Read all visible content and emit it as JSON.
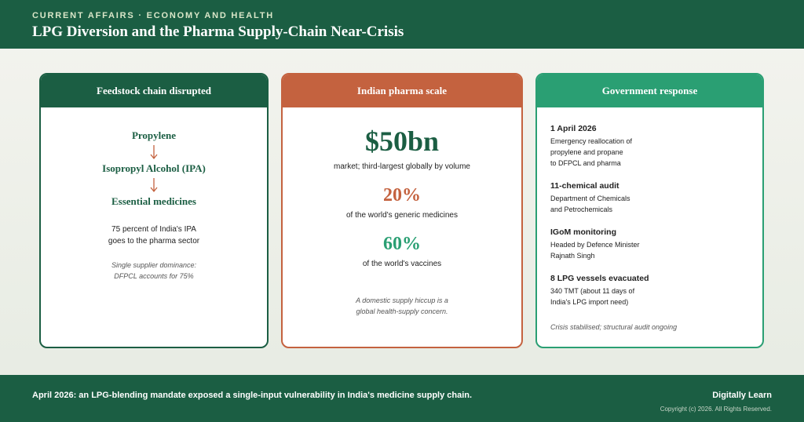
{
  "header": {
    "kicker": "CURRENT AFFAIRS · ECONOMY AND HEALTH",
    "title": "LPG Diversion and the Pharma Supply-Chain Near-Crisis"
  },
  "cards": [
    {
      "title": "Feedstock chain disrupted",
      "chain": [
        "Propylene",
        "Isopropyl Alcohol (IPA)",
        "Essential medicines"
      ],
      "note": [
        "75 percent of India's IPA",
        "goes to the pharma sector"
      ],
      "italic": [
        "Single supplier dominance:",
        "DFPCL accounts for 75%"
      ]
    },
    {
      "title": "Indian pharma scale",
      "stats": [
        {
          "value": "$50bn",
          "label": "market; third-largest globally by volume"
        },
        {
          "value": "20%",
          "label": "of the world's generic medicines"
        },
        {
          "value": "60%",
          "label": "of the world's vaccines"
        }
      ],
      "italic": [
        "A domestic supply hiccup is a",
        "global health-supply concern."
      ]
    },
    {
      "title": "Government response",
      "items": [
        {
          "heading": "1 April 2026",
          "lines": [
            "Emergency reallocation of",
            "propylene and propane",
            "to DFPCL and pharma"
          ]
        },
        {
          "heading": "11-chemical audit",
          "lines": [
            "Department of Chemicals",
            "and Petrochemicals"
          ]
        },
        {
          "heading": "IGoM monitoring",
          "lines": [
            "Headed by Defence Minister",
            "Rajnath Singh"
          ]
        },
        {
          "heading": "8 LPG vessels evacuated",
          "lines": [
            "340 TMT (about 11 days of",
            "India's LPG import need)"
          ]
        }
      ],
      "italic": [
        "Crisis stabilised; structural audit ongoing"
      ]
    }
  ],
  "footer": {
    "text": "April 2026: an LPG-blending mandate exposed a single-input vulnerability in India's medicine supply chain.",
    "brand": "Digitally Learn",
    "copyright": "Copyright (c) 2026. All Rights Reserved."
  }
}
